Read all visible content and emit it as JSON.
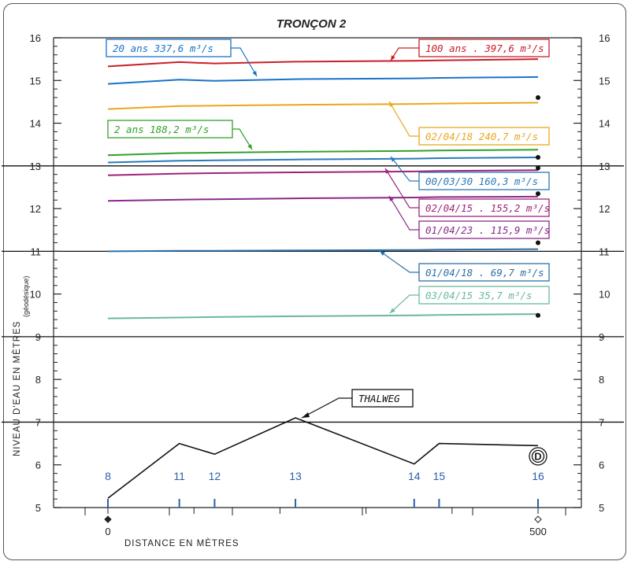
{
  "chart_data": {
    "type": "line",
    "title": "TRONÇON 2",
    "xlabel": "DISTANCE EN MÈTRES",
    "ylabel": "NIVEAU D'EAU EN MÈTRES",
    "ylabel_note": "(géodésique)",
    "xlim": [
      0,
      500
    ],
    "ylim": [
      5,
      16
    ],
    "y_ticks": [
      "5",
      "6",
      "7",
      "8",
      "9",
      "10",
      "11",
      "12",
      "13",
      "14",
      "15",
      "16"
    ],
    "x_ticks": [
      "0",
      "500"
    ],
    "section_x": [
      0,
      83,
      124,
      218,
      356,
      385,
      500
    ],
    "sections": [
      "8",
      "11",
      "12",
      "13",
      "14",
      "15",
      "16"
    ],
    "grid_y": [
      7,
      9,
      11,
      13
    ],
    "series": [
      {
        "name": "100 ans . 397,6 m³/s",
        "color": "#c8202a",
        "x": [
          0,
          83,
          124,
          218,
          356,
          385,
          500
        ],
        "y": [
          15.33,
          15.43,
          15.4,
          15.44,
          15.46,
          15.47,
          15.5
        ]
      },
      {
        "name": "20 ans 337,6 m³/s",
        "color": "#1a73c8",
        "x": [
          0,
          83,
          124,
          218,
          356,
          385,
          500
        ],
        "y": [
          14.92,
          15.02,
          14.99,
          15.03,
          15.05,
          15.06,
          15.08
        ]
      },
      {
        "name": "02/04/18 240,7 m³/s",
        "color": "#e8a81c",
        "x": [
          0,
          83,
          124,
          218,
          356,
          385,
          500
        ],
        "y": [
          14.33,
          14.4,
          14.41,
          14.43,
          14.45,
          14.46,
          14.48
        ]
      },
      {
        "name": "2 ans 188,2 m³/s",
        "color": "#33a02c",
        "x": [
          0,
          83,
          124,
          218,
          356,
          385,
          500
        ],
        "y": [
          13.25,
          13.3,
          13.31,
          13.33,
          13.35,
          13.36,
          13.38
        ]
      },
      {
        "name": "00/03/30 160,3 m³/s",
        "color": "#2a7ab8",
        "x": [
          0,
          83,
          124,
          218,
          356,
          385,
          500
        ],
        "y": [
          13.08,
          13.12,
          13.13,
          13.15,
          13.17,
          13.18,
          13.2
        ]
      },
      {
        "name": "02/04/15 . 155,2 m³/s",
        "color": "#a0237a",
        "x": [
          0,
          83,
          124,
          218,
          356,
          385,
          500
        ],
        "y": [
          12.78,
          12.82,
          12.83,
          12.85,
          12.87,
          12.88,
          12.9
        ]
      },
      {
        "name": "01/04/23 . 115,9 m³/s",
        "color": "#8a2a8a",
        "x": [
          0,
          83,
          124,
          218,
          356,
          385,
          500
        ],
        "y": [
          12.18,
          12.21,
          12.22,
          12.24,
          12.26,
          12.27,
          12.28
        ]
      },
      {
        "name": "01/04/18 . 69,7 m³/s",
        "color": "#2c6fa6",
        "x": [
          0,
          83,
          124,
          218,
          356,
          385,
          500
        ],
        "y": [
          11.0,
          11.01,
          11.01,
          11.02,
          11.03,
          11.04,
          11.05
        ]
      },
      {
        "name": "03/04/15 35,7 m³/s",
        "color": "#6ab8a0",
        "x": [
          0,
          83,
          124,
          218,
          356,
          385,
          500
        ],
        "y": [
          9.43,
          9.45,
          9.46,
          9.48,
          9.5,
          9.51,
          9.53
        ]
      }
    ],
    "thalweg": {
      "name": "THALWEG",
      "color": "#111111",
      "x": [
        0,
        83,
        124,
        218,
        356,
        385,
        500
      ],
      "y": [
        5.22,
        6.5,
        6.25,
        7.1,
        6.02,
        6.5,
        6.45
      ]
    },
    "observed_points": {
      "x": 500,
      "y": [
        14.6,
        13.2,
        12.95,
        12.35,
        11.2,
        9.5
      ]
    },
    "annotations": [
      "D"
    ]
  }
}
